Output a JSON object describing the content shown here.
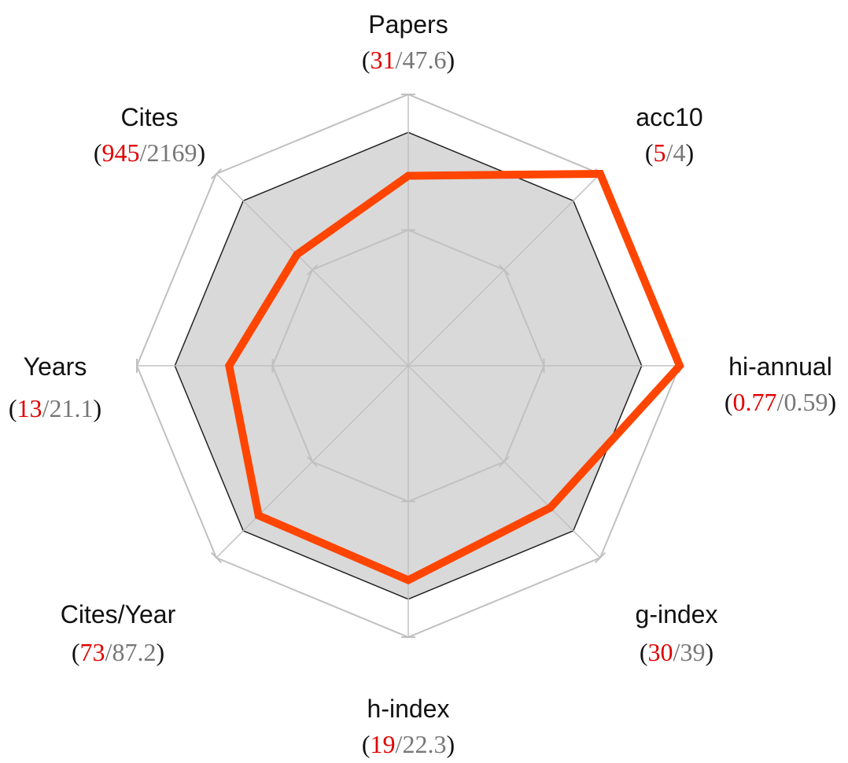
{
  "chart_data": {
    "type": "radar",
    "title": "",
    "axes": [
      {
        "name": "Papers",
        "value": "31",
        "reference": "47.6",
        "norm_value": 0.7,
        "norm_reference": 0.86
      },
      {
        "name": "acc10",
        "value": "5",
        "reference": "4",
        "norm_value": 1.0,
        "norm_reference": 0.86
      },
      {
        "name": "hi-annual",
        "value": "0.77",
        "reference": "0.59",
        "norm_value": 1.0,
        "norm_reference": 0.86
      },
      {
        "name": "g-index",
        "value": "30",
        "reference": "39",
        "norm_value": 0.74,
        "norm_reference": 0.86
      },
      {
        "name": "h-index",
        "value": "19",
        "reference": "22.3",
        "norm_value": 0.79,
        "norm_reference": 0.86
      },
      {
        "name": "Cites/Year",
        "value": "73",
        "reference": "87.2",
        "norm_value": 0.78,
        "norm_reference": 0.86
      },
      {
        "name": "Years",
        "value": "13",
        "reference": "21.1",
        "norm_value": 0.66,
        "norm_reference": 0.86
      },
      {
        "name": "Cites",
        "value": "945",
        "reference": "2169",
        "norm_value": 0.58,
        "norm_reference": 0.86
      }
    ],
    "grid_levels": [
      0.5,
      1.0
    ],
    "series": [
      {
        "values_key": "norm_reference",
        "color": "#d9d9d9",
        "stroke": "#222222",
        "filled": true
      },
      {
        "values_key": "norm_value",
        "color": "#ff4500",
        "filled": false
      }
    ],
    "value_color": "#e00000",
    "reference_color": "#777777",
    "grid_color": "#c0c0c0"
  }
}
